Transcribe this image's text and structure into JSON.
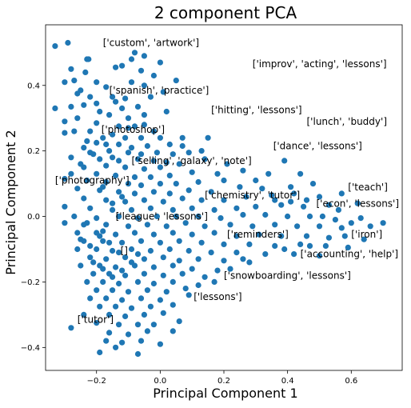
{
  "chart_data": {
    "type": "scatter",
    "title": "2 component PCA",
    "xlabel": "Principal Component 1",
    "ylabel": "Principal Component 2",
    "xlim": [
      -0.36,
      0.76
    ],
    "ylim": [
      -0.47,
      0.585
    ],
    "xticks": [
      -0.2,
      0.0,
      0.2,
      0.4,
      0.6
    ],
    "xtick_labels": [
      "−0.2",
      "0.0",
      "0.2",
      "0.4",
      "0.6"
    ],
    "yticks": [
      -0.4,
      -0.2,
      0.0,
      0.2,
      0.4
    ],
    "ytick_labels": [
      "−0.4",
      "−0.2",
      "0.0",
      "0.2",
      "0.4"
    ],
    "grid": false,
    "legend": "none",
    "marker_color": "#1f77b4",
    "annotations": [
      {
        "text": "['custom', 'artwork']",
        "x": -0.18,
        "y": 0.52
      },
      {
        "text": "['improv', 'acting', 'lessons']",
        "x": 0.29,
        "y": 0.455
      },
      {
        "text": "['spanish', 'practice']",
        "x": -0.16,
        "y": 0.375
      },
      {
        "text": "['hitting', 'lessons']",
        "x": 0.16,
        "y": 0.315
      },
      {
        "text": "['lunch', 'buddy']",
        "x": 0.46,
        "y": 0.28
      },
      {
        "text": "['photoshop']",
        "x": -0.185,
        "y": 0.255
      },
      {
        "text": "['dance', 'lessons']",
        "x": 0.355,
        "y": 0.205
      },
      {
        "text": "['selling', 'galaxy', 'note']",
        "x": -0.09,
        "y": 0.16
      },
      {
        "text": "['photography']",
        "x": -0.33,
        "y": 0.1
      },
      {
        "text": "['teach']",
        "x": 0.59,
        "y": 0.08
      },
      {
        "text": "['chemistry', 'tutor']",
        "x": 0.14,
        "y": 0.055
      },
      {
        "text": "['econ', 'lessons']",
        "x": 0.49,
        "y": 0.03
      },
      {
        "text": "['league', 'lessons']",
        "x": -0.14,
        "y": -0.01
      },
      {
        "text": "['iron']",
        "x": 0.6,
        "y": -0.065
      },
      {
        "text": "['reminders']",
        "x": 0.21,
        "y": -0.065
      },
      {
        "text": "['accounting', 'help']",
        "x": 0.44,
        "y": -0.125
      },
      {
        "text": "[]",
        "x": -0.125,
        "y": -0.115
      },
      {
        "text": "['snowboarding', 'lessons']",
        "x": 0.2,
        "y": -0.19
      },
      {
        "text": "['lessons']",
        "x": 0.105,
        "y": -0.255
      },
      {
        "text": "['tutor']",
        "x": -0.26,
        "y": -0.325
      }
    ],
    "points": [
      [
        -0.33,
        0.52
      ],
      [
        -0.29,
        0.53
      ],
      [
        -0.23,
        0.48
      ],
      [
        -0.225,
        0.48
      ],
      [
        -0.08,
        0.5
      ],
      [
        -0.05,
        0.49
      ],
      [
        -0.09,
        0.48
      ],
      [
        0.0,
        0.47
      ],
      [
        -0.12,
        0.46
      ],
      [
        -0.28,
        0.45
      ],
      [
        -0.235,
        0.44
      ],
      [
        -0.14,
        0.455
      ],
      [
        -0.06,
        0.445
      ],
      [
        -0.02,
        0.43
      ],
      [
        -0.2,
        0.41
      ],
      [
        -0.3,
        0.41
      ],
      [
        -0.27,
        0.415
      ],
      [
        -0.09,
        0.41
      ],
      [
        -0.05,
        0.4
      ],
      [
        -0.17,
        0.395
      ],
      [
        0.05,
        0.415
      ],
      [
        -0.25,
        0.385
      ],
      [
        -0.26,
        0.375
      ],
      [
        -0.22,
        0.365
      ],
      [
        -0.15,
        0.365
      ],
      [
        -0.11,
        0.36
      ],
      [
        -0.03,
        0.365
      ],
      [
        0.01,
        0.38
      ],
      [
        -0.33,
        0.33
      ],
      [
        -0.28,
        0.335
      ],
      [
        -0.24,
        0.34
      ],
      [
        -0.2,
        0.345
      ],
      [
        -0.12,
        0.33
      ],
      [
        -0.07,
        0.335
      ],
      [
        -0.16,
        0.31
      ],
      [
        -0.1,
        0.3
      ],
      [
        -0.05,
        0.31
      ],
      [
        0.02,
        0.32
      ],
      [
        -0.26,
        0.3
      ],
      [
        -0.2,
        0.285
      ],
      [
        -0.3,
        0.29
      ],
      [
        -0.13,
        0.275
      ],
      [
        -0.08,
        0.275
      ],
      [
        -0.02,
        0.26
      ],
      [
        -0.22,
        0.26
      ],
      [
        -0.15,
        0.25
      ],
      [
        -0.3,
        0.255
      ],
      [
        -0.11,
        0.24
      ],
      [
        -0.06,
        0.24
      ],
      [
        0.0,
        0.24
      ],
      [
        -0.2,
        0.225
      ],
      [
        -0.24,
        0.21
      ],
      [
        -0.17,
        0.22
      ],
      [
        -0.13,
        0.22
      ],
      [
        -0.09,
        0.21
      ],
      [
        -0.04,
        0.215
      ],
      [
        0.03,
        0.22
      ],
      [
        0.07,
        0.215
      ],
      [
        -0.22,
        0.195
      ],
      [
        -0.16,
        0.2
      ],
      [
        -0.1,
        0.195
      ],
      [
        -0.06,
        0.19
      ],
      [
        -0.01,
        0.195
      ],
      [
        0.04,
        0.19
      ],
      [
        -0.28,
        0.18
      ],
      [
        -0.19,
        0.175
      ],
      [
        -0.13,
        0.17
      ],
      [
        -0.07,
        0.175
      ],
      [
        -0.02,
        0.17
      ],
      [
        0.02,
        0.165
      ],
      [
        0.09,
        0.195
      ],
      [
        -0.24,
        0.15
      ],
      [
        -0.17,
        0.155
      ],
      [
        -0.11,
        0.15
      ],
      [
        -0.05,
        0.145
      ],
      [
        0.0,
        0.15
      ],
      [
        0.06,
        0.16
      ],
      [
        0.14,
        0.175
      ],
      [
        -0.28,
        0.13
      ],
      [
        -0.2,
        0.13
      ],
      [
        -0.14,
        0.125
      ],
      [
        -0.08,
        0.12
      ],
      [
        -0.03,
        0.12
      ],
      [
        0.03,
        0.125
      ],
      [
        0.1,
        0.135
      ],
      [
        -0.3,
        0.115
      ],
      [
        -0.23,
        0.11
      ],
      [
        -0.17,
        0.105
      ],
      [
        -0.1,
        0.1
      ],
      [
        -0.06,
        0.095
      ],
      [
        0.0,
        0.1
      ],
      [
        0.05,
        0.1
      ],
      [
        0.12,
        0.105
      ],
      [
        0.2,
        0.11
      ],
      [
        -0.26,
        0.085
      ],
      [
        -0.19,
        0.08
      ],
      [
        -0.13,
        0.075
      ],
      [
        -0.08,
        0.07
      ],
      [
        -0.02,
        0.075
      ],
      [
        0.03,
        0.07
      ],
      [
        0.09,
        0.08
      ],
      [
        0.16,
        0.075
      ],
      [
        0.25,
        0.09
      ],
      [
        0.32,
        0.085
      ],
      [
        -0.24,
        0.055
      ],
      [
        -0.17,
        0.05
      ],
      [
        -0.11,
        0.045
      ],
      [
        -0.05,
        0.05
      ],
      [
        0.01,
        0.045
      ],
      [
        0.07,
        0.055
      ],
      [
        0.13,
        0.05
      ],
      [
        0.2,
        0.05
      ],
      [
        0.27,
        0.06
      ],
      [
        0.35,
        0.065
      ],
      [
        0.42,
        0.07
      ],
      [
        0.5,
        0.06
      ],
      [
        0.57,
        0.07
      ],
      [
        -0.3,
        0.03
      ],
      [
        -0.22,
        0.025
      ],
      [
        -0.15,
        0.02
      ],
      [
        -0.09,
        0.02
      ],
      [
        -0.03,
        0.025
      ],
      [
        0.04,
        0.02
      ],
      [
        0.1,
        0.025
      ],
      [
        0.17,
        0.02
      ],
      [
        0.24,
        0.025
      ],
      [
        0.3,
        0.03
      ],
      [
        0.38,
        0.035
      ],
      [
        0.45,
        0.03
      ],
      [
        0.53,
        0.035
      ],
      [
        0.62,
        0.04
      ],
      [
        -0.27,
        0.0
      ],
      [
        -0.2,
        -0.005
      ],
      [
        -0.13,
        0.0
      ],
      [
        -0.07,
        -0.005
      ],
      [
        -0.01,
        0.0
      ],
      [
        0.05,
        0.0
      ],
      [
        0.12,
        0.0
      ],
      [
        0.19,
        -0.005
      ],
      [
        0.26,
        0.005
      ],
      [
        0.33,
        0.005
      ],
      [
        0.4,
        0.0
      ],
      [
        0.47,
        0.0
      ],
      [
        0.55,
        -0.01
      ],
      [
        0.63,
        -0.005
      ],
      [
        0.7,
        -0.02
      ],
      [
        -0.3,
        -0.02
      ],
      [
        -0.24,
        -0.025
      ],
      [
        -0.17,
        -0.025
      ],
      [
        -0.1,
        -0.03
      ],
      [
        -0.04,
        -0.025
      ],
      [
        0.02,
        -0.03
      ],
      [
        0.08,
        -0.02
      ],
      [
        0.14,
        -0.03
      ],
      [
        0.22,
        -0.025
      ],
      [
        0.29,
        -0.03
      ],
      [
        0.36,
        -0.025
      ],
      [
        0.43,
        -0.03
      ],
      [
        0.5,
        -0.03
      ],
      [
        0.57,
        -0.035
      ],
      [
        0.66,
        -0.03
      ],
      [
        -0.26,
        -0.05
      ],
      [
        -0.2,
        -0.05
      ],
      [
        -0.14,
        -0.055
      ],
      [
        -0.08,
        -0.05
      ],
      [
        -0.02,
        -0.055
      ],
      [
        0.04,
        -0.05
      ],
      [
        0.1,
        -0.055
      ],
      [
        0.17,
        -0.05
      ],
      [
        0.24,
        -0.06
      ],
      [
        0.31,
        -0.055
      ],
      [
        0.38,
        -0.06
      ],
      [
        0.46,
        -0.06
      ],
      [
        0.53,
        -0.065
      ],
      [
        -0.24,
        -0.075
      ],
      [
        -0.18,
        -0.075
      ],
      [
        -0.12,
        -0.08
      ],
      [
        -0.06,
        -0.075
      ],
      [
        0.0,
        -0.08
      ],
      [
        0.06,
        -0.075
      ],
      [
        0.13,
        -0.08
      ],
      [
        0.2,
        -0.085
      ],
      [
        0.28,
        -0.085
      ],
      [
        0.36,
        -0.09
      ],
      [
        0.44,
        -0.085
      ],
      [
        0.52,
        -0.09
      ],
      [
        0.59,
        -0.095
      ],
      [
        -0.26,
        -0.1
      ],
      [
        -0.2,
        -0.1
      ],
      [
        -0.15,
        -0.105
      ],
      [
        -0.09,
        -0.1
      ],
      [
        -0.03,
        -0.105
      ],
      [
        0.03,
        -0.1
      ],
      [
        0.09,
        -0.105
      ],
      [
        0.16,
        -0.11
      ],
      [
        0.24,
        -0.11
      ],
      [
        0.33,
        -0.115
      ],
      [
        0.42,
        -0.115
      ],
      [
        0.5,
        -0.12
      ],
      [
        -0.22,
        -0.125
      ],
      [
        -0.17,
        -0.13
      ],
      [
        -0.11,
        -0.125
      ],
      [
        -0.05,
        -0.13
      ],
      [
        0.01,
        -0.125
      ],
      [
        0.06,
        -0.135
      ],
      [
        0.12,
        -0.13
      ],
      [
        0.2,
        -0.135
      ],
      [
        0.28,
        -0.14
      ],
      [
        -0.25,
        -0.15
      ],
      [
        -0.19,
        -0.15
      ],
      [
        -0.14,
        -0.155
      ],
      [
        -0.08,
        -0.15
      ],
      [
        -0.02,
        -0.155
      ],
      [
        0.04,
        -0.15
      ],
      [
        0.1,
        -0.16
      ],
      [
        0.18,
        -0.165
      ],
      [
        -0.21,
        -0.175
      ],
      [
        -0.16,
        -0.175
      ],
      [
        -0.11,
        -0.18
      ],
      [
        -0.05,
        -0.175
      ],
      [
        0.01,
        -0.18
      ],
      [
        0.07,
        -0.175
      ],
      [
        0.14,
        -0.185
      ],
      [
        -0.23,
        -0.2
      ],
      [
        -0.18,
        -0.2
      ],
      [
        -0.13,
        -0.205
      ],
      [
        -0.07,
        -0.2
      ],
      [
        -0.02,
        -0.205
      ],
      [
        0.04,
        -0.2
      ],
      [
        0.12,
        -0.21
      ],
      [
        -0.2,
        -0.225
      ],
      [
        -0.15,
        -0.225
      ],
      [
        -0.1,
        -0.23
      ],
      [
        -0.04,
        -0.225
      ],
      [
        0.02,
        -0.23
      ],
      [
        0.08,
        -0.22
      ],
      [
        -0.22,
        -0.25
      ],
      [
        -0.17,
        -0.25
      ],
      [
        -0.12,
        -0.255
      ],
      [
        -0.06,
        -0.25
      ],
      [
        0.0,
        -0.255
      ],
      [
        -0.19,
        -0.275
      ],
      [
        -0.14,
        -0.275
      ],
      [
        -0.09,
        -0.28
      ],
      [
        -0.03,
        -0.275
      ],
      [
        0.04,
        -0.27
      ],
      [
        -0.24,
        -0.3
      ],
      [
        -0.16,
        -0.3
      ],
      [
        -0.11,
        -0.305
      ],
      [
        -0.05,
        -0.3
      ],
      [
        0.01,
        -0.295
      ],
      [
        -0.2,
        -0.325
      ],
      [
        -0.13,
        -0.33
      ],
      [
        -0.07,
        -0.33
      ],
      [
        -0.02,
        -0.33
      ],
      [
        -0.16,
        -0.355
      ],
      [
        -0.1,
        -0.36
      ],
      [
        -0.04,
        -0.35
      ],
      [
        -0.17,
        -0.38
      ],
      [
        -0.12,
        -0.385
      ],
      [
        -0.06,
        -0.38
      ],
      [
        -0.19,
        -0.415
      ],
      [
        -0.14,
        -0.4
      ],
      [
        -0.28,
        -0.34
      ],
      [
        -0.25,
        -0.07
      ],
      [
        -0.23,
        -0.02
      ],
      [
        -0.18,
        -0.045
      ],
      [
        -0.16,
        -0.08
      ],
      [
        -0.13,
        -0.11
      ],
      [
        -0.21,
        -0.14
      ],
      [
        -0.18,
        -0.16
      ],
      [
        -0.15,
        -0.185
      ],
      [
        -0.12,
        -0.165
      ],
      [
        -0.09,
        -0.14
      ],
      [
        -0.07,
        -0.115
      ],
      [
        -0.19,
        -0.06
      ],
      [
        -0.22,
        -0.09
      ],
      [
        -0.15,
        0.04
      ],
      [
        -0.12,
        0.06
      ],
      [
        -0.18,
        0.09
      ],
      [
        -0.25,
        0.16
      ],
      [
        -0.21,
        0.19
      ],
      [
        -0.15,
        0.18
      ],
      [
        -0.18,
        0.24
      ],
      [
        -0.1,
        0.27
      ],
      [
        -0.05,
        0.28
      ],
      [
        0.07,
        0.24
      ],
      [
        -0.23,
        0.23
      ],
      [
        -0.27,
        0.26
      ],
      [
        -0.19,
        0.32
      ],
      [
        -0.14,
        0.35
      ],
      [
        0.15,
        0.24
      ],
      [
        0.13,
        0.2
      ],
      [
        0.21,
        0.16
      ],
      [
        0.18,
        0.13
      ],
      [
        0.26,
        0.14
      ],
      [
        0.3,
        0.11
      ],
      [
        0.34,
        0.13
      ],
      [
        0.39,
        0.17
      ],
      [
        0.44,
        0.13
      ],
      [
        0.41,
        0.09
      ],
      [
        0.48,
        0.1
      ],
      [
        0.36,
        0.05
      ],
      [
        0.41,
        0.045
      ],
      [
        0.46,
        0.05
      ],
      [
        0.51,
        0.0
      ],
      [
        0.56,
        0.02
      ],
      [
        0.6,
        -0.02
      ],
      [
        0.58,
        -0.06
      ],
      [
        0.64,
        -0.07
      ],
      [
        0.47,
        -0.09
      ],
      [
        0.39,
        -0.1
      ],
      [
        0.26,
        -0.13
      ],
      [
        0.22,
        -0.16
      ],
      [
        0.17,
        -0.2
      ],
      [
        0.09,
        -0.24
      ],
      [
        0.06,
        -0.32
      ],
      [
        0.04,
        -0.35
      ],
      [
        -0.07,
        -0.42
      ],
      [
        0.0,
        -0.39
      ]
    ]
  }
}
